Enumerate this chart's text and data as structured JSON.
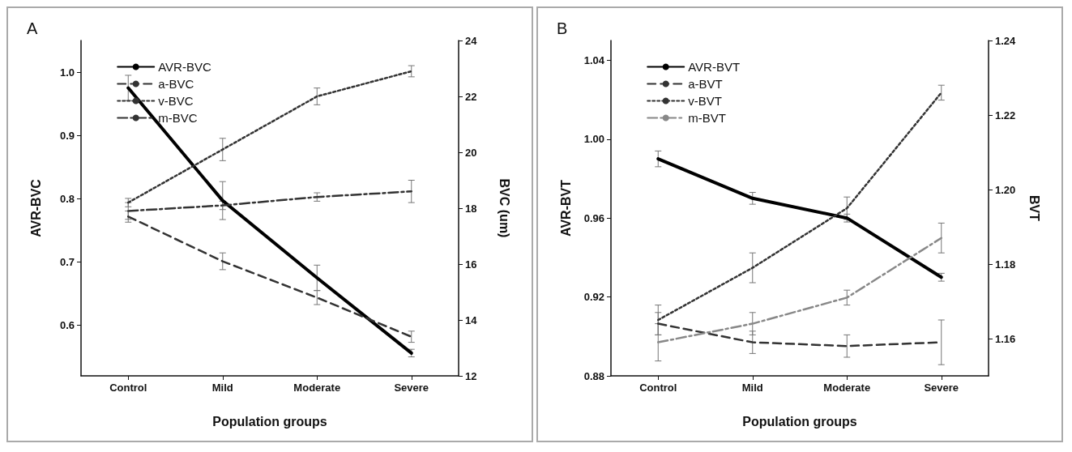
{
  "chart_data": [
    {
      "type": "line",
      "title": "A",
      "xlabel": "Population groups",
      "ylabel": "AVR-BVC",
      "y2label": "BVC (um)",
      "categories": [
        "Control",
        "Mild",
        "Moderate",
        "Severe"
      ],
      "ylim": [
        0.52,
        1.05
      ],
      "yticks": [
        0.6,
        0.7,
        0.8,
        0.9,
        {
          "value": 1,
          "label": "1.0"
        }
      ],
      "y2lim": [
        12,
        24
      ],
      "y2ticks": [
        12,
        14,
        16,
        18,
        20,
        22,
        24
      ],
      "grid": false,
      "legend": "top left",
      "marker": "none",
      "series": [
        {
          "name": "AVR-BVC",
          "color": "#000000",
          "line_style": "solid",
          "values": [
            0.975,
            0.797,
            0.675,
            0.556
          ],
          "errors": [
            0.02,
            0.03,
            0.02,
            0.006
          ]
        },
        {
          "name": "a-BVC",
          "color": "#333333",
          "line_style": "dashed",
          "axis": "y2",
          "values": [
            17.7,
            16.1,
            14.8,
            13.4
          ],
          "errors": [
            0.2,
            0.3,
            0.25,
            0.2
          ]
        },
        {
          "name": "v-BVC",
          "color": "#333333",
          "line_style": "dotted",
          "axis": "y2",
          "values": [
            18.2,
            20.1,
            22.0,
            22.9
          ],
          "errors": [
            0.15,
            0.4,
            0.3,
            0.2
          ]
        },
        {
          "name": "m-BVC",
          "color": "#333333",
          "line_style": "dashdot",
          "axis": "y2",
          "values": [
            17.9,
            18.1,
            18.4,
            18.6
          ],
          "errors": [
            0.3,
            0.15,
            0.15,
            0.4
          ]
        }
      ]
    },
    {
      "type": "line",
      "title": "B",
      "xlabel": "Population groups",
      "ylabel": "AVR-BVT",
      "y2label": "BVT",
      "categories": [
        "Control",
        "Mild",
        "Moderate",
        "Severe"
      ],
      "ylim": [
        0.88,
        1.05
      ],
      "yticks": [
        0.88,
        0.92,
        0.96,
        {
          "value": 1,
          "label": "1.00"
        },
        1.04
      ],
      "y2lim": [
        1.15,
        1.24
      ],
      "y2ticks": [
        1.16,
        1.18,
        {
          "value": 1.2,
          "label": "1.20"
        },
        1.22,
        1.24
      ],
      "grid": false,
      "legend": "top left",
      "marker": "none",
      "series": [
        {
          "name": "AVR-BVT",
          "color": "#000000",
          "line_style": "solid",
          "values": [
            0.99,
            0.97,
            0.96,
            0.93
          ],
          "errors": [
            0.004,
            0.003,
            0.002,
            0.002
          ]
        },
        {
          "name": "a-BVT",
          "color": "#333333",
          "line_style": "dashed",
          "axis": "y2",
          "values": [
            1.164,
            1.159,
            1.158,
            1.159
          ],
          "errors": [
            0.003,
            0.003,
            0.003,
            0.006
          ]
        },
        {
          "name": "v-BVT",
          "color": "#333333",
          "line_style": "dotted",
          "axis": "y2",
          "values": [
            1.165,
            1.179,
            1.195,
            1.226
          ],
          "errors": [
            0.004,
            0.004,
            0.003,
            0.002
          ]
        },
        {
          "name": "m-BVT",
          "color": "#888888",
          "line_style": "dashdot",
          "axis": "y2",
          "values": [
            1.159,
            1.164,
            1.171,
            1.187
          ],
          "errors": [
            0.005,
            0.003,
            0.002,
            0.004
          ]
        }
      ]
    }
  ]
}
